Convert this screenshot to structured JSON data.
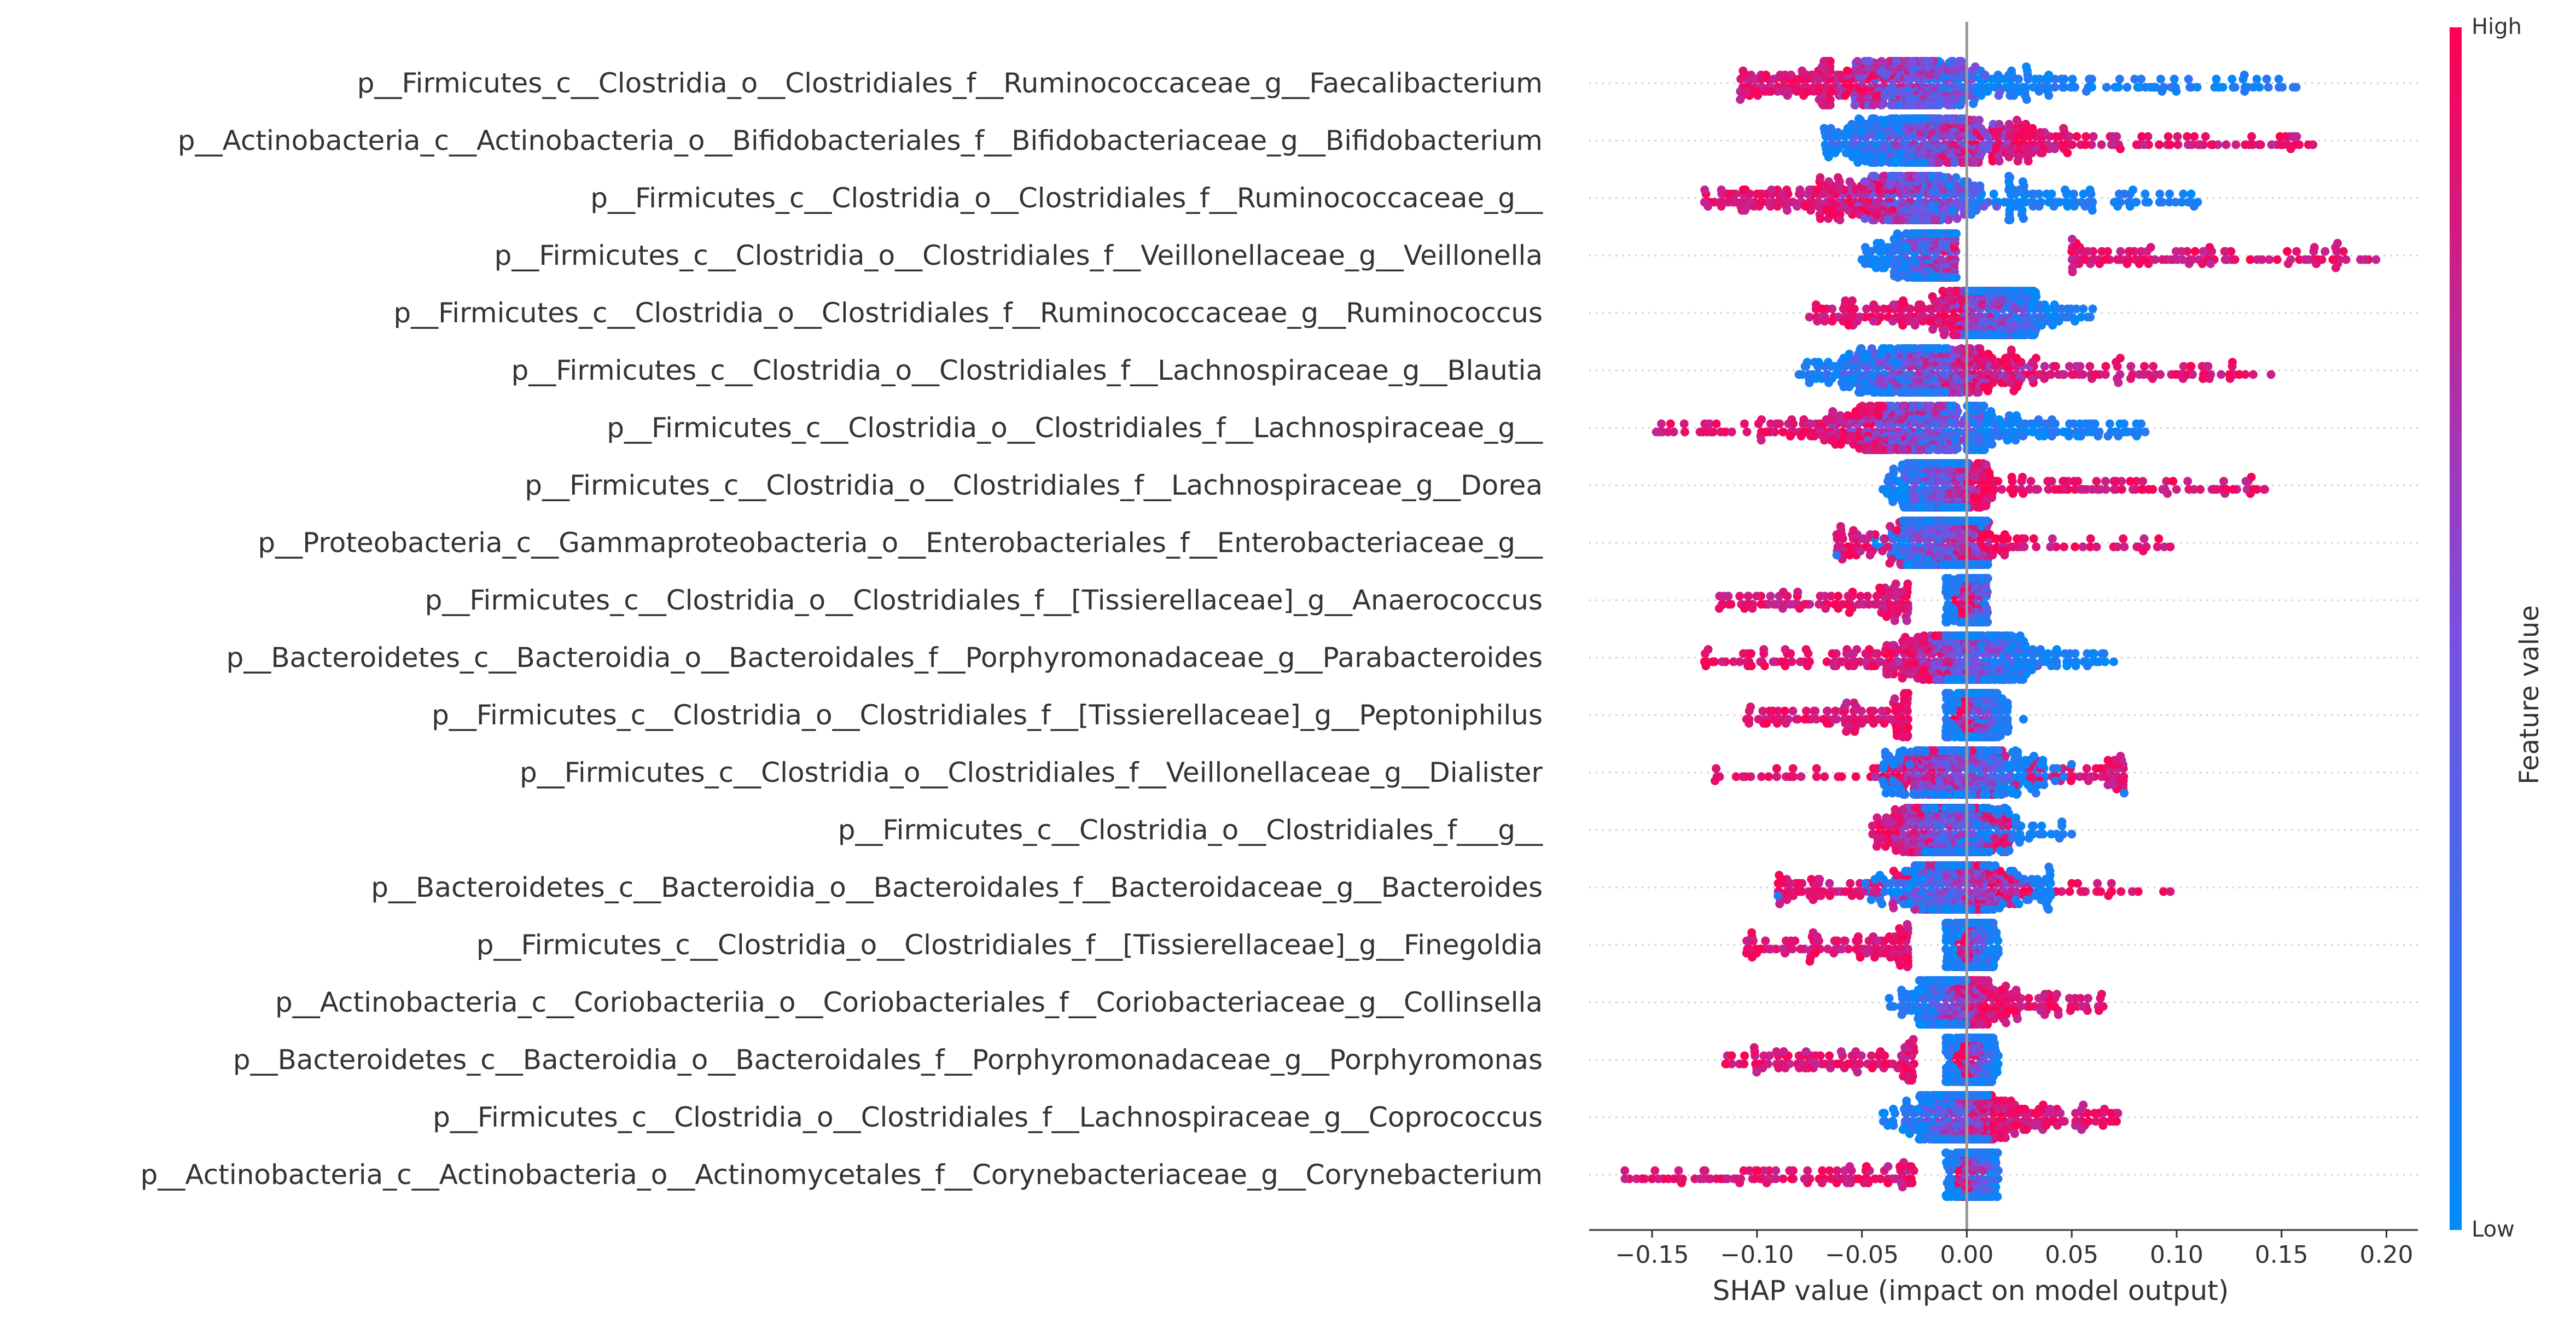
{
  "chart_data": {
    "type": "scatter",
    "subtype": "shap-beeswarm",
    "xlabel": "SHAP value (impact on model output)",
    "xlim": [
      -0.18,
      0.215
    ],
    "xticks": [
      -0.15,
      -0.1,
      -0.05,
      0.0,
      0.05,
      0.1,
      0.15,
      0.2
    ],
    "xtick_labels": [
      "−0.15",
      "−0.10",
      "−0.05",
      "0.00",
      "0.05",
      "0.10",
      "0.15",
      "0.20"
    ],
    "grid": false,
    "colorbar": {
      "label": "Feature value",
      "high_label": "High",
      "low_label": "Low",
      "low_color": "#008bfb",
      "high_color": "#ff0051"
    },
    "features": [
      {
        "name": "p__Firmicutes_c__Clostridia_o__Clostridiales_f__Ruminococcaceae_g__Faecalibacterium",
        "min": -0.108,
        "max": 0.157,
        "neg_hi": true,
        "peak": -0.025,
        "peak_w": 0.02,
        "high_tail": [
          -0.108,
          -0.065
        ],
        "low_tail": [
          0.02,
          0.157
        ]
      },
      {
        "name": "p__Actinobacteria_c__Actinobacteria_o__Bifidobacteriales_f__Bifidobacteriaceae_g__Bifidobacterium",
        "min": -0.068,
        "max": 0.165,
        "neg_hi": false,
        "peak": -0.018,
        "peak_w": 0.022,
        "high_tail": [
          0.02,
          0.165
        ],
        "low_tail": [
          -0.068,
          -0.02
        ]
      },
      {
        "name": "p__Firmicutes_c__Clostridia_o__Clostridiales_f__Ruminococcaceae_g__",
        "min": -0.125,
        "max": 0.11,
        "neg_hi": true,
        "peak": -0.025,
        "peak_w": 0.018,
        "high_tail": [
          -0.125,
          -0.06
        ],
        "low_tail": [
          0.02,
          0.11
        ]
      },
      {
        "name": "p__Firmicutes_c__Clostridia_o__Clostridiales_f__Veillonellaceae_g__Veillonella",
        "min": -0.05,
        "max": 0.195,
        "neg_hi": false,
        "peak": -0.015,
        "peak_w": 0.01,
        "high_tail": [
          0.05,
          0.195
        ],
        "low_tail": [
          -0.05,
          -0.005
        ],
        "gap": [
          -0.005,
          0.05
        ]
      },
      {
        "name": "p__Firmicutes_c__Clostridia_o__Clostridiales_f__Ruminococcaceae_g__Ruminococcus",
        "min": -0.075,
        "max": 0.06,
        "neg_hi": true,
        "peak": 0.012,
        "peak_w": 0.012,
        "high_tail": [
          -0.075,
          -0.005
        ],
        "low_tail": [
          0.0,
          0.06
        ]
      },
      {
        "name": "p__Firmicutes_c__Clostridia_o__Clostridiales_f__Lachnospiraceae_g__Blautia",
        "min": -0.08,
        "max": 0.145,
        "neg_hi": false,
        "peak": -0.02,
        "peak_w": 0.022,
        "high_tail": [
          0.0,
          0.145
        ],
        "low_tail": [
          -0.08,
          -0.01
        ]
      },
      {
        "name": "p__Firmicutes_c__Clostridia_o__Clostridiales_f__Lachnospiraceae_g__",
        "min": -0.148,
        "max": 0.085,
        "neg_hi": true,
        "peak": -0.022,
        "peak_w": 0.022,
        "high_tail": [
          -0.148,
          -0.04
        ],
        "low_tail": [
          0.0,
          0.085
        ]
      },
      {
        "name": "p__Firmicutes_c__Clostridia_o__Clostridiales_f__Lachnospiraceae_g__Dorea",
        "min": -0.04,
        "max": 0.142,
        "neg_hi": false,
        "peak": -0.012,
        "peak_w": 0.01,
        "high_tail": [
          0.005,
          0.142
        ],
        "low_tail": [
          -0.04,
          0.0
        ]
      },
      {
        "name": "p__Proteobacteria_c__Gammaproteobacteria_o__Enterobacteriales_f__Enterobacteriaceae_g__",
        "min": -0.062,
        "max": 0.097,
        "neg_hi": false,
        "peak": -0.012,
        "peak_w": 0.012,
        "high_tail": [
          -0.062,
          0.097
        ],
        "low_tail": [
          -0.03,
          0.01
        ]
      },
      {
        "name": "p__Firmicutes_c__Clostridia_o__Clostridiales_f__[Tissierellaceae]_g__Anaerococcus",
        "min": -0.118,
        "max": 0.01,
        "neg_hi": true,
        "peak": 0.005,
        "peak_w": 0.004,
        "high_tail": [
          -0.118,
          -0.028
        ],
        "low_tail": [
          -0.01,
          0.01
        ],
        "gap": [
          -0.028,
          -0.01
        ]
      },
      {
        "name": "p__Bacteroidetes_c__Bacteroidia_o__Bacteroidales_f__Porphyromonadaceae_g__Parabacteroides",
        "min": -0.125,
        "max": 0.07,
        "neg_hi": true,
        "peak": 0.0,
        "peak_w": 0.015,
        "high_tail": [
          -0.125,
          -0.02
        ],
        "low_tail": [
          -0.01,
          0.07
        ]
      },
      {
        "name": "p__Firmicutes_c__Clostridia_o__Clostridiales_f__[Tissierellaceae]_g__Peptoniphilus",
        "min": -0.105,
        "max": 0.027,
        "neg_hi": true,
        "peak": 0.005,
        "peak_w": 0.004,
        "high_tail": [
          -0.105,
          -0.028
        ],
        "low_tail": [
          -0.01,
          0.02
        ],
        "gap": [
          -0.028,
          -0.01
        ]
      },
      {
        "name": "p__Firmicutes_c__Clostridia_o__Clostridiales_f__Veillonellaceae_g__Dialister",
        "min": -0.12,
        "max": 0.075,
        "neg_hi": true,
        "peak": -0.005,
        "peak_w": 0.015,
        "high_tail": [
          -0.12,
          0.075
        ],
        "low_tail": [
          -0.04,
          0.05
        ]
      },
      {
        "name": "p__Firmicutes_c__Clostridia_o__Clostridiales_f___g__",
        "min": -0.045,
        "max": 0.05,
        "neg_hi": true,
        "peak": -0.012,
        "peak_w": 0.012,
        "high_tail": [
          -0.045,
          0.02
        ],
        "low_tail": [
          -0.02,
          0.05
        ]
      },
      {
        "name": "p__Bacteroidetes_c__Bacteroidia_o__Bacteroidales_f__Bacteroidaceae_g__Bacteroides",
        "min": -0.09,
        "max": 0.097,
        "neg_hi": false,
        "peak": -0.005,
        "peak_w": 0.014,
        "high_tail": [
          -0.09,
          0.097
        ],
        "low_tail": [
          -0.05,
          0.04
        ]
      },
      {
        "name": "p__Firmicutes_c__Clostridia_o__Clostridiales_f__[Tissierellaceae]_g__Finegoldia",
        "min": -0.105,
        "max": 0.015,
        "neg_hi": true,
        "peak": 0.005,
        "peak_w": 0.004,
        "high_tail": [
          -0.105,
          -0.028
        ],
        "low_tail": [
          -0.01,
          0.015
        ],
        "gap": [
          -0.028,
          -0.012
        ]
      },
      {
        "name": "p__Actinobacteria_c__Coriobacteriia_o__Coriobacteriales_f__Coriobacteriaceae_g__Collinsella",
        "min": -0.037,
        "max": 0.065,
        "neg_hi": false,
        "peak": -0.008,
        "peak_w": 0.007,
        "high_tail": [
          0.005,
          0.065
        ],
        "low_tail": [
          -0.037,
          0.0
        ]
      },
      {
        "name": "p__Bacteroidetes_c__Bacteroidia_o__Bacteroidales_f__Porphyromonadaceae_g__Porphyromonas",
        "min": -0.115,
        "max": 0.015,
        "neg_hi": true,
        "peak": 0.005,
        "peak_w": 0.004,
        "high_tail": [
          -0.115,
          -0.025
        ],
        "low_tail": [
          -0.01,
          0.015
        ],
        "gap": [
          -0.025,
          -0.01
        ]
      },
      {
        "name": "p__Firmicutes_c__Clostridia_o__Clostridiales_f__Lachnospiraceae_g__Coprococcus",
        "min": -0.04,
        "max": 0.072,
        "neg_hi": false,
        "peak": -0.005,
        "peak_w": 0.01,
        "high_tail": [
          0.01,
          0.072
        ],
        "low_tail": [
          -0.04,
          0.01
        ]
      },
      {
        "name": "p__Actinobacteria_c__Actinobacteria_o__Actinomycetales_f__Corynebacteriaceae_g__Corynebacterium",
        "min": -0.163,
        "max": 0.015,
        "neg_hi": true,
        "peak": 0.005,
        "peak_w": 0.004,
        "high_tail": [
          -0.163,
          -0.025
        ],
        "low_tail": [
          -0.01,
          0.015
        ],
        "gap": [
          -0.025,
          -0.01
        ]
      }
    ]
  }
}
